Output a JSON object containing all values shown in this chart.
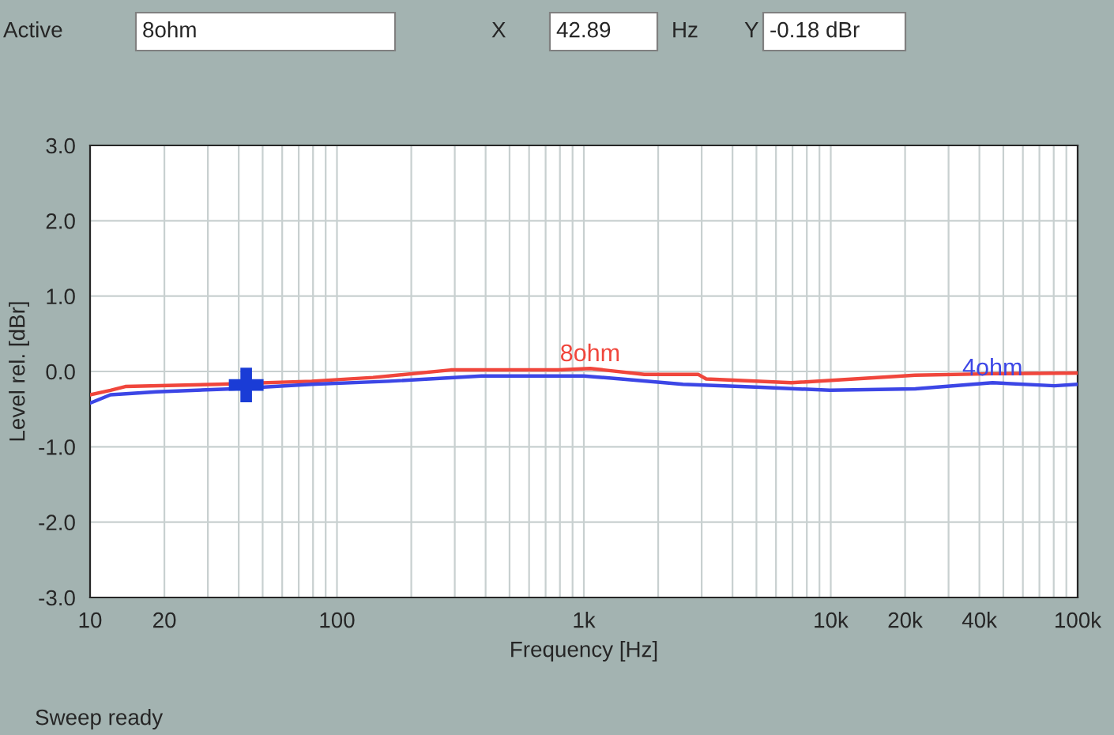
{
  "chart_data": {
    "type": "line",
    "xlabel": "Frequency [Hz]",
    "ylabel": "Level rel. [dBr]",
    "annotations": [
      "Active",
      "8ohm",
      "X",
      "42.89",
      "Hz",
      "Y",
      "-0.18 dBr",
      "Sweep ready"
    ],
    "log": "x",
    "grid": true,
    "legend": false,
    "marker": "none",
    "line_style": "solid",
    "xlim": [
      10,
      100000
    ],
    "xticks": [
      10,
      20,
      100,
      {
        "value": 1000,
        "label": "1k"
      },
      {
        "value": 10000,
        "label": "10k"
      },
      {
        "value": 20000,
        "label": "20k"
      },
      {
        "value": 40000,
        "label": "40k"
      },
      {
        "value": 100000,
        "label": "100k"
      }
    ],
    "ylim": [
      -3,
      3
    ],
    "yticks": [
      {
        "value": -3,
        "label": "-3.0"
      },
      {
        "value": -2,
        "label": "-2.0"
      },
      {
        "value": -1,
        "label": "-1.0"
      },
      {
        "value": 0,
        "label": "0.0"
      },
      {
        "value": 1,
        "label": "1.0"
      },
      {
        "value": 2,
        "label": "2.0"
      },
      {
        "value": 3,
        "label": "3.0"
      }
    ],
    "series": [
      {
        "name": "8ohm",
        "color": "#f0463c",
        "x": [
          10,
          12.1,
          13.9,
          33,
          79,
          140,
          289,
          794,
          1060,
          1758,
          2910,
          3130,
          6930,
          21980,
          45200,
          100000
        ],
        "values": [
          -0.31,
          -0.25,
          -0.2,
          -0.17,
          -0.13,
          -0.08,
          0.02,
          0.02,
          0.04,
          -0.04,
          -0.04,
          -0.1,
          -0.15,
          -0.05,
          -0.03,
          -0.02
        ]
      },
      {
        "name": "4ohm",
        "color": "#3c46e6",
        "x": [
          10,
          12.1,
          18.6,
          38,
          79,
          162,
          385,
          1000,
          1413,
          2520,
          5190,
          9930,
          21980,
          45200,
          80500,
          100000
        ],
        "values": [
          -0.42,
          -0.31,
          -0.27,
          -0.23,
          -0.17,
          -0.13,
          -0.06,
          -0.06,
          -0.1,
          -0.17,
          -0.21,
          -0.25,
          -0.23,
          -0.15,
          -0.19,
          -0.17
        ]
      },
      {
        "type": "scatter",
        "marker": "cross",
        "color": "#1a3cd6",
        "x": [
          42.89
        ],
        "values": [
          -0.18
        ]
      }
    ]
  }
}
